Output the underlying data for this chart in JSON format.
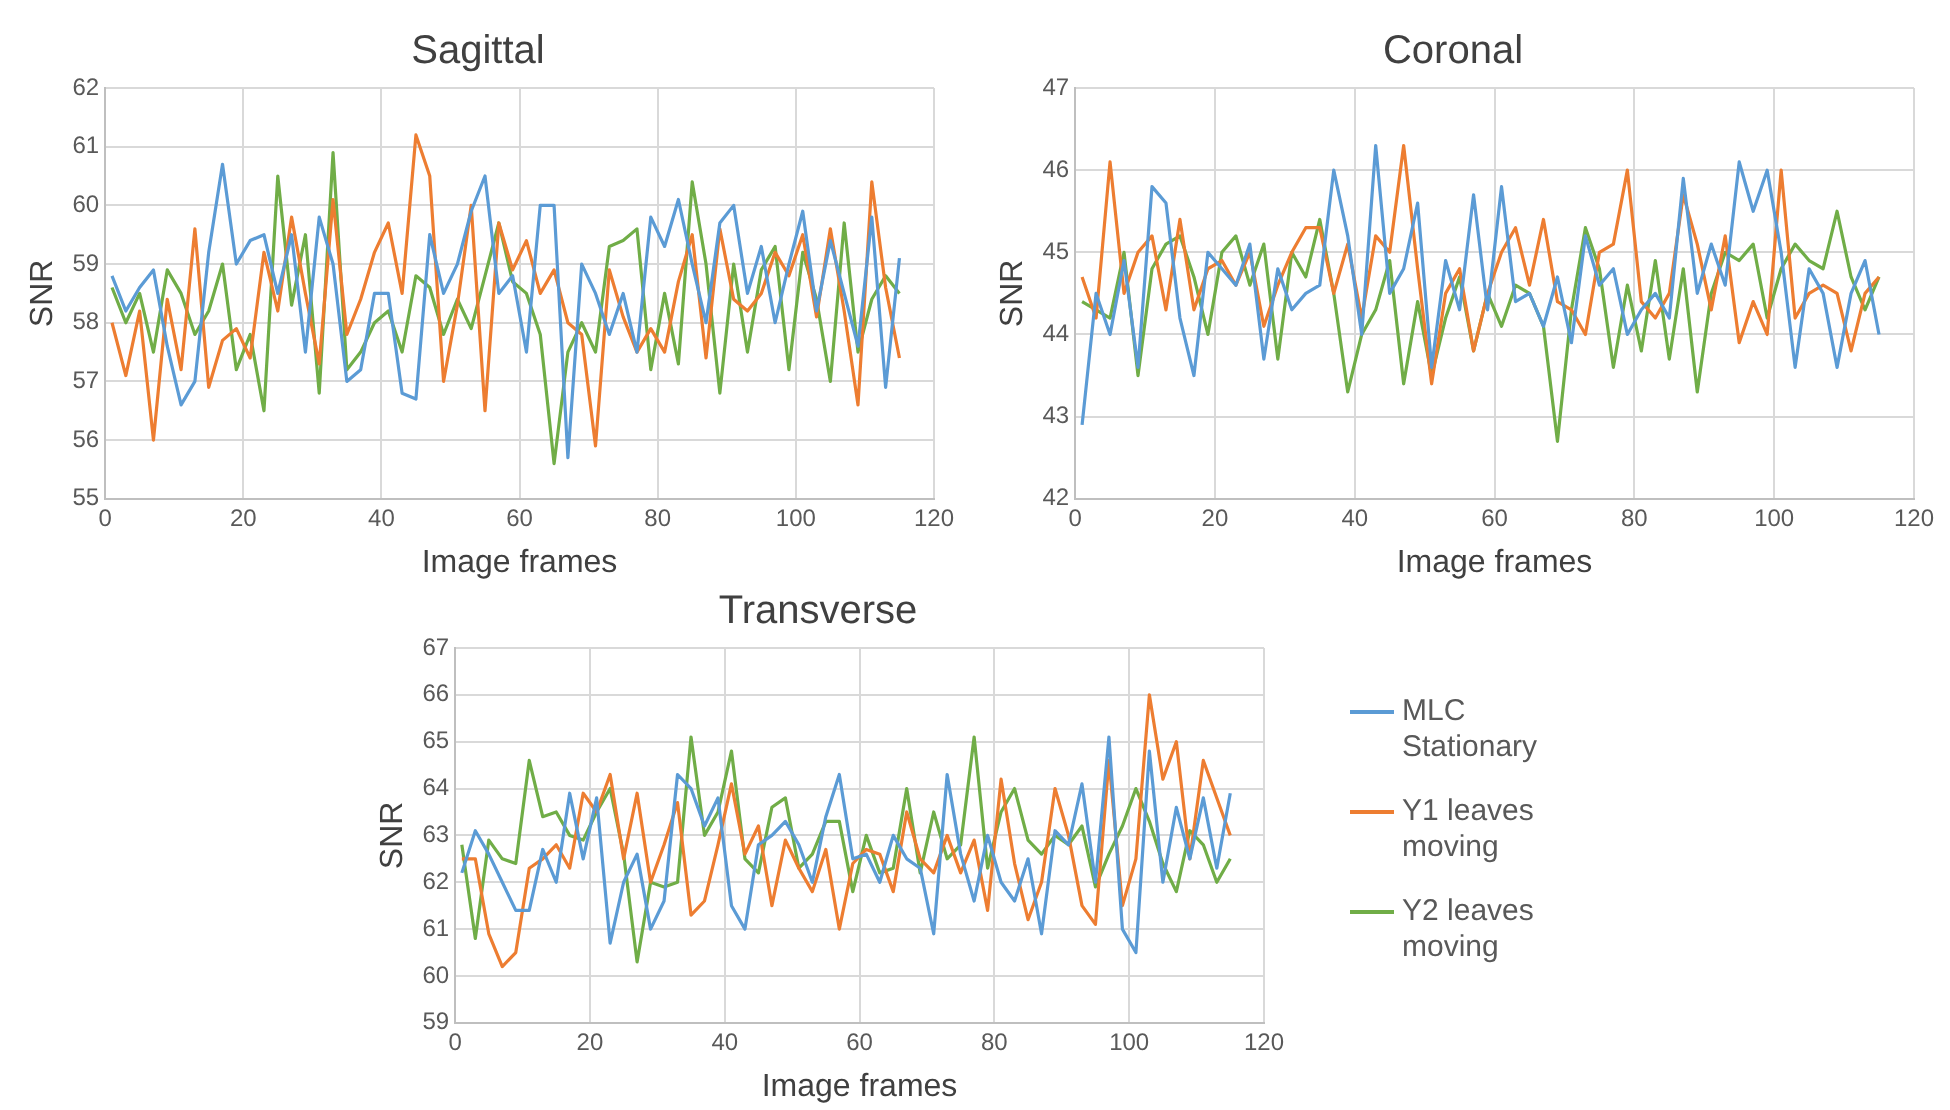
{
  "chart_data": [
    {
      "type": "line",
      "title": "Sagittal",
      "xlabel": "Image frames",
      "ylabel": "SNR",
      "xlim": [
        0,
        120
      ],
      "xticks": [
        0,
        20,
        40,
        60,
        80,
        100,
        120
      ],
      "ylim": [
        55,
        62
      ],
      "yticks": [
        55,
        56,
        57,
        58,
        59,
        60,
        61,
        62
      ],
      "grid": true,
      "marker": "none",
      "line_style": "solid",
      "x": [
        1,
        3,
        5,
        7,
        9,
        11,
        13,
        15,
        17,
        19,
        21,
        23,
        25,
        27,
        29,
        31,
        33,
        35,
        37,
        39,
        41,
        43,
        45,
        47,
        49,
        51,
        53,
        55,
        57,
        59,
        61,
        63,
        65,
        67,
        69,
        71,
        73,
        75,
        77,
        79,
        81,
        83,
        85,
        87,
        89,
        91,
        93,
        95,
        97,
        99,
        101,
        103,
        105,
        107,
        109,
        111,
        113,
        115
      ],
      "series": [
        {
          "color": "#5b9bd5",
          "values": [
            58.8,
            58.2,
            58.6,
            58.9,
            57.6,
            56.6,
            57.0,
            59.2,
            60.7,
            59.0,
            59.4,
            59.5,
            58.5,
            59.5,
            57.5,
            59.8,
            59.0,
            57.0,
            57.2,
            58.5,
            58.5,
            56.8,
            56.7,
            59.5,
            58.5,
            59.0,
            59.9,
            60.5,
            58.5,
            58.8,
            57.5,
            60.0,
            60.0,
            55.7,
            59.0,
            58.5,
            57.8,
            58.5,
            57.5,
            59.8,
            59.3,
            60.1,
            59.0,
            58.0,
            59.7,
            60.0,
            58.5,
            59.3,
            58.0,
            59.0,
            59.9,
            58.2,
            59.4,
            58.5,
            57.6,
            59.8,
            56.9,
            59.1
          ]
        },
        {
          "color": "#ed7d31",
          "values": [
            58.0,
            57.1,
            58.2,
            56.0,
            58.4,
            57.2,
            59.6,
            56.9,
            57.7,
            57.9,
            57.4,
            59.2,
            58.2,
            59.8,
            58.5,
            57.3,
            60.1,
            57.8,
            58.4,
            59.2,
            59.7,
            58.5,
            61.2,
            60.5,
            57.0,
            58.3,
            60.0,
            56.5,
            59.7,
            58.9,
            59.4,
            58.5,
            58.9,
            58.0,
            57.8,
            55.9,
            58.9,
            58.1,
            57.5,
            57.9,
            57.5,
            58.7,
            59.5,
            57.4,
            59.6,
            58.4,
            58.2,
            58.5,
            59.2,
            58.8,
            59.5,
            58.1,
            59.6,
            58.2,
            56.6,
            60.4,
            58.6,
            57.4
          ]
        },
        {
          "color": "#70ad47",
          "values": [
            58.6,
            58.0,
            58.5,
            57.5,
            58.9,
            58.5,
            57.8,
            58.2,
            59.0,
            57.2,
            57.8,
            56.5,
            60.5,
            58.3,
            59.5,
            56.8,
            60.9,
            57.2,
            57.5,
            58.0,
            58.2,
            57.5,
            58.8,
            58.6,
            57.8,
            58.4,
            57.9,
            58.8,
            59.7,
            58.7,
            58.5,
            57.8,
            55.6,
            57.5,
            58.0,
            57.5,
            59.3,
            59.4,
            59.6,
            57.2,
            58.5,
            57.3,
            60.4,
            59.0,
            56.8,
            59.0,
            57.5,
            58.9,
            59.3,
            57.2,
            59.2,
            58.4,
            57.0,
            59.7,
            57.5,
            58.4,
            58.8,
            58.5
          ]
        }
      ]
    },
    {
      "type": "line",
      "title": "Coronal",
      "xlabel": "Image frames",
      "ylabel": "SNR",
      "xlim": [
        0,
        120
      ],
      "xticks": [
        0,
        20,
        40,
        60,
        80,
        100,
        120
      ],
      "ylim": [
        42,
        47
      ],
      "yticks": [
        42,
        43,
        44,
        45,
        46,
        47
      ],
      "grid": true,
      "marker": "none",
      "line_style": "solid",
      "x": [
        1,
        3,
        5,
        7,
        9,
        11,
        13,
        15,
        17,
        19,
        21,
        23,
        25,
        27,
        29,
        31,
        33,
        35,
        37,
        39,
        41,
        43,
        45,
        47,
        49,
        51,
        53,
        55,
        57,
        59,
        61,
        63,
        65,
        67,
        69,
        71,
        73,
        75,
        77,
        79,
        81,
        83,
        85,
        87,
        89,
        91,
        93,
        95,
        97,
        99,
        101,
        103,
        105,
        107,
        109,
        111,
        113,
        115
      ],
      "series": [
        {
          "color": "#5b9bd5",
          "values": [
            42.9,
            44.5,
            44.0,
            44.9,
            43.6,
            45.8,
            45.6,
            44.2,
            43.5,
            45.0,
            44.8,
            44.6,
            45.1,
            43.7,
            44.8,
            44.3,
            44.5,
            44.6,
            46.0,
            45.2,
            44.0,
            46.3,
            44.5,
            44.8,
            45.6,
            43.6,
            44.9,
            44.3,
            45.7,
            44.3,
            45.8,
            44.4,
            44.5,
            44.1,
            44.7,
            43.9,
            45.2,
            44.6,
            44.8,
            44.0,
            44.3,
            44.5,
            44.2,
            45.9,
            44.5,
            45.1,
            44.6,
            46.1,
            45.5,
            46.0,
            45.0,
            43.6,
            44.8,
            44.5,
            43.6,
            44.5,
            44.9,
            44.0
          ]
        },
        {
          "color": "#ed7d31",
          "values": [
            44.7,
            44.2,
            46.1,
            44.5,
            45.0,
            45.2,
            44.3,
            45.4,
            44.3,
            44.8,
            44.9,
            44.6,
            45.0,
            44.1,
            44.6,
            45.0,
            45.3,
            45.3,
            44.5,
            45.1,
            44.2,
            45.2,
            45.0,
            46.3,
            44.8,
            43.4,
            44.5,
            44.8,
            43.8,
            44.5,
            45.0,
            45.3,
            44.6,
            45.4,
            44.4,
            44.3,
            44.0,
            45.0,
            45.1,
            46.0,
            44.4,
            44.2,
            44.5,
            45.7,
            45.1,
            44.3,
            45.2,
            43.9,
            44.4,
            44.0,
            46.0,
            44.2,
            44.5,
            44.6,
            44.5,
            43.8,
            44.5,
            44.7
          ]
        },
        {
          "color": "#70ad47",
          "values": [
            44.4,
            44.3,
            44.2,
            45.0,
            43.5,
            44.8,
            45.1,
            45.2,
            44.7,
            44.0,
            45.0,
            45.2,
            44.6,
            45.1,
            43.7,
            45.0,
            44.7,
            45.4,
            44.5,
            43.3,
            44.0,
            44.3,
            44.9,
            43.4,
            44.4,
            43.5,
            44.2,
            44.7,
            43.8,
            44.5,
            44.1,
            44.6,
            44.5,
            44.1,
            42.7,
            44.3,
            45.3,
            44.8,
            43.6,
            44.6,
            43.8,
            44.9,
            43.7,
            44.8,
            43.3,
            44.5,
            45.0,
            44.9,
            45.1,
            44.2,
            44.8,
            45.1,
            44.9,
            44.8,
            45.5,
            44.7,
            44.3,
            44.7
          ]
        }
      ]
    },
    {
      "type": "line",
      "title": "Transverse",
      "xlabel": "Image frames",
      "ylabel": "SNR",
      "xlim": [
        0,
        120
      ],
      "xticks": [
        0,
        20,
        40,
        60,
        80,
        100,
        120
      ],
      "ylim": [
        59,
        67
      ],
      "yticks": [
        59,
        60,
        61,
        62,
        63,
        64,
        65,
        66,
        67
      ],
      "grid": true,
      "marker": "none",
      "line_style": "solid",
      "legend": "right",
      "x": [
        1,
        3,
        5,
        7,
        9,
        11,
        13,
        15,
        17,
        19,
        21,
        23,
        25,
        27,
        29,
        31,
        33,
        35,
        37,
        39,
        41,
        43,
        45,
        47,
        49,
        51,
        53,
        55,
        57,
        59,
        61,
        63,
        65,
        67,
        69,
        71,
        73,
        75,
        77,
        79,
        81,
        83,
        85,
        87,
        89,
        91,
        93,
        95,
        97,
        99,
        101,
        103,
        105,
        107,
        109,
        111,
        113,
        115
      ],
      "series": [
        {
          "name": "MLC Stationary",
          "color": "#5b9bd5",
          "values": [
            62.2,
            63.1,
            62.6,
            62.0,
            61.4,
            61.4,
            62.7,
            62.0,
            63.9,
            62.5,
            63.8,
            60.7,
            62.0,
            62.6,
            61.0,
            61.6,
            64.3,
            64.0,
            63.2,
            63.8,
            61.5,
            61.0,
            62.8,
            63.0,
            63.3,
            62.8,
            62.0,
            63.4,
            64.3,
            62.5,
            62.6,
            62.0,
            63.0,
            62.5,
            62.3,
            60.9,
            64.3,
            62.6,
            61.6,
            63.0,
            62.0,
            61.6,
            62.5,
            60.9,
            63.1,
            62.8,
            64.1,
            62.0,
            65.1,
            61.0,
            60.5,
            64.8,
            62.0,
            63.6,
            62.5,
            63.8,
            62.3,
            63.9
          ]
        },
        {
          "name": "Y1 leaves moving",
          "color": "#ed7d31",
          "values": [
            62.5,
            62.5,
            60.9,
            60.2,
            60.5,
            62.3,
            62.5,
            62.8,
            62.3,
            63.9,
            63.5,
            64.3,
            62.5,
            63.9,
            62.0,
            62.8,
            63.7,
            61.3,
            61.6,
            62.8,
            64.1,
            62.6,
            63.2,
            61.5,
            62.9,
            62.3,
            61.8,
            62.7,
            61.0,
            62.4,
            62.7,
            62.6,
            61.8,
            63.5,
            62.5,
            62.2,
            63.0,
            62.2,
            62.9,
            61.4,
            64.2,
            62.4,
            61.2,
            62.0,
            64.0,
            63.0,
            61.5,
            61.1,
            64.6,
            61.5,
            62.5,
            66.0,
            64.2,
            65.0,
            62.5,
            64.6,
            63.8,
            63.0
          ]
        },
        {
          "name": "Y2 leaves moving",
          "color": "#70ad47",
          "values": [
            62.8,
            60.8,
            62.9,
            62.5,
            62.4,
            64.6,
            63.4,
            63.5,
            63.0,
            62.9,
            63.5,
            64.0,
            62.6,
            60.3,
            62.0,
            61.9,
            62.0,
            65.1,
            63.0,
            63.5,
            64.8,
            62.5,
            62.2,
            63.6,
            63.8,
            62.3,
            62.6,
            63.3,
            63.3,
            61.8,
            63.0,
            62.2,
            62.3,
            64.0,
            62.2,
            63.5,
            62.5,
            62.8,
            65.1,
            62.3,
            63.5,
            64.0,
            62.9,
            62.6,
            63.0,
            62.8,
            63.2,
            61.9,
            62.6,
            63.2,
            64.0,
            63.3,
            62.4,
            61.8,
            63.1,
            62.8,
            62.0,
            62.5
          ]
        }
      ]
    }
  ]
}
